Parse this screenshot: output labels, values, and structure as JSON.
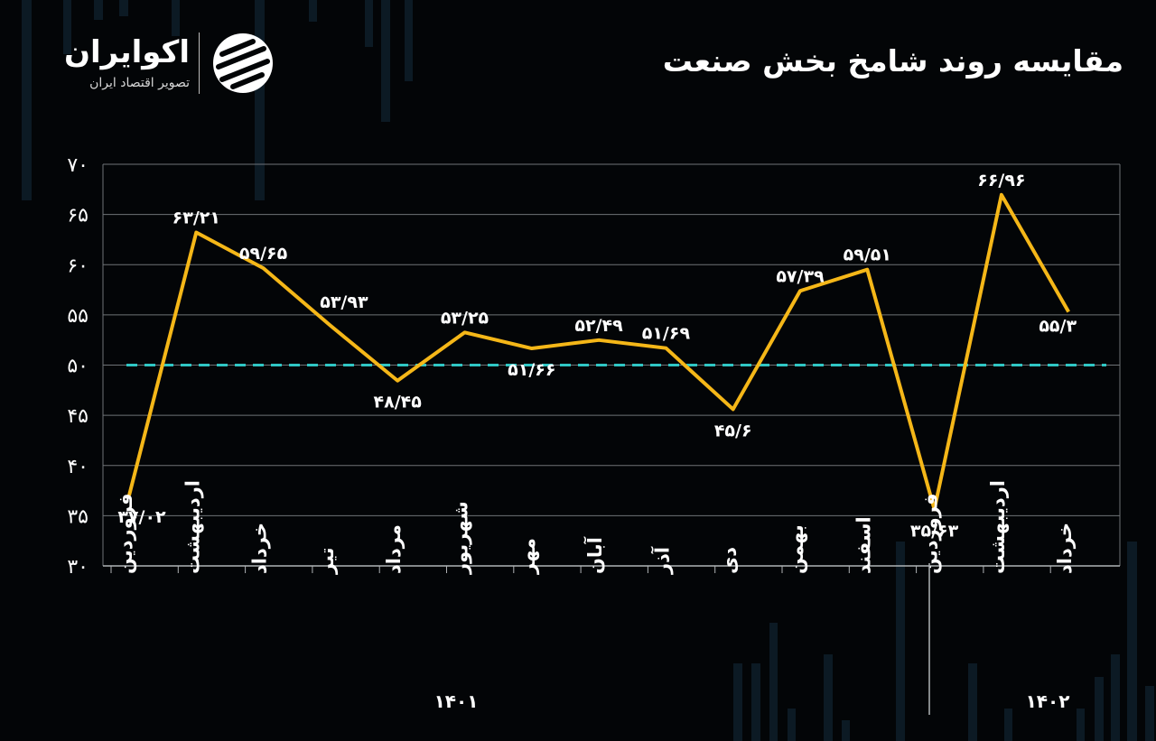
{
  "title": "مقایسه روند شامخ بخش صنعت",
  "logo": {
    "name": "اکوایران",
    "tagline": "تصویر اقتصاد ایران",
    "icon": "ecoiran-logo-icon"
  },
  "colors": {
    "background": "#030507",
    "line": "#f5b718",
    "reference": "#2fc6c4",
    "grid": "#6f7377",
    "text": "#ffffff"
  },
  "chart_data": {
    "type": "line",
    "title": "مقایسه روند شامخ بخش صنعت",
    "categories": [
      "فروردین",
      "اردیبهشت",
      "خرداد",
      "تیر",
      "مرداد",
      "شهریور",
      "مهر",
      "آبان",
      "آذر",
      "دی",
      "بهمن",
      "اسفند",
      "فروردین",
      "اردیبهشت",
      "خرداد"
    ],
    "series": [
      {
        "values": [
          37.02,
          63.21,
          59.65,
          53.93,
          48.45,
          53.25,
          51.66,
          52.49,
          51.69,
          45.6,
          57.39,
          59.51,
          35.63,
          66.96,
          55.3
        ],
        "labels": [
          "۳۷/۰۲",
          "۶۳/۲۱",
          "۵۹/۶۵",
          "۵۳/۹۳",
          "۴۸/۴۵",
          "۵۳/۲۵",
          "۵۱/۶۶",
          "۵۲/۴۹",
          "۵۱/۶۹",
          "۴۵/۶",
          "۵۷/۳۹",
          "۵۹/۵۱",
          "۳۵/۶۳",
          "۶۶/۹۶",
          "۵۵/۳"
        ]
      }
    ],
    "reference_line": 50,
    "ylim": [
      30,
      70
    ],
    "yticks": [
      30,
      35,
      40,
      45,
      50,
      55,
      60,
      65,
      70
    ],
    "ytick_labels": [
      "۳۰",
      "۳۵",
      "۴۰",
      "۴۵",
      "۵۰",
      "۵۵",
      "۶۰",
      "۶۵",
      "۷۰"
    ],
    "groups": [
      {
        "label": "۱۴۰۱",
        "from": 0,
        "to": 11
      },
      {
        "label": "۱۴۰۲",
        "from": 12,
        "to": 14
      }
    ],
    "grid": true
  }
}
